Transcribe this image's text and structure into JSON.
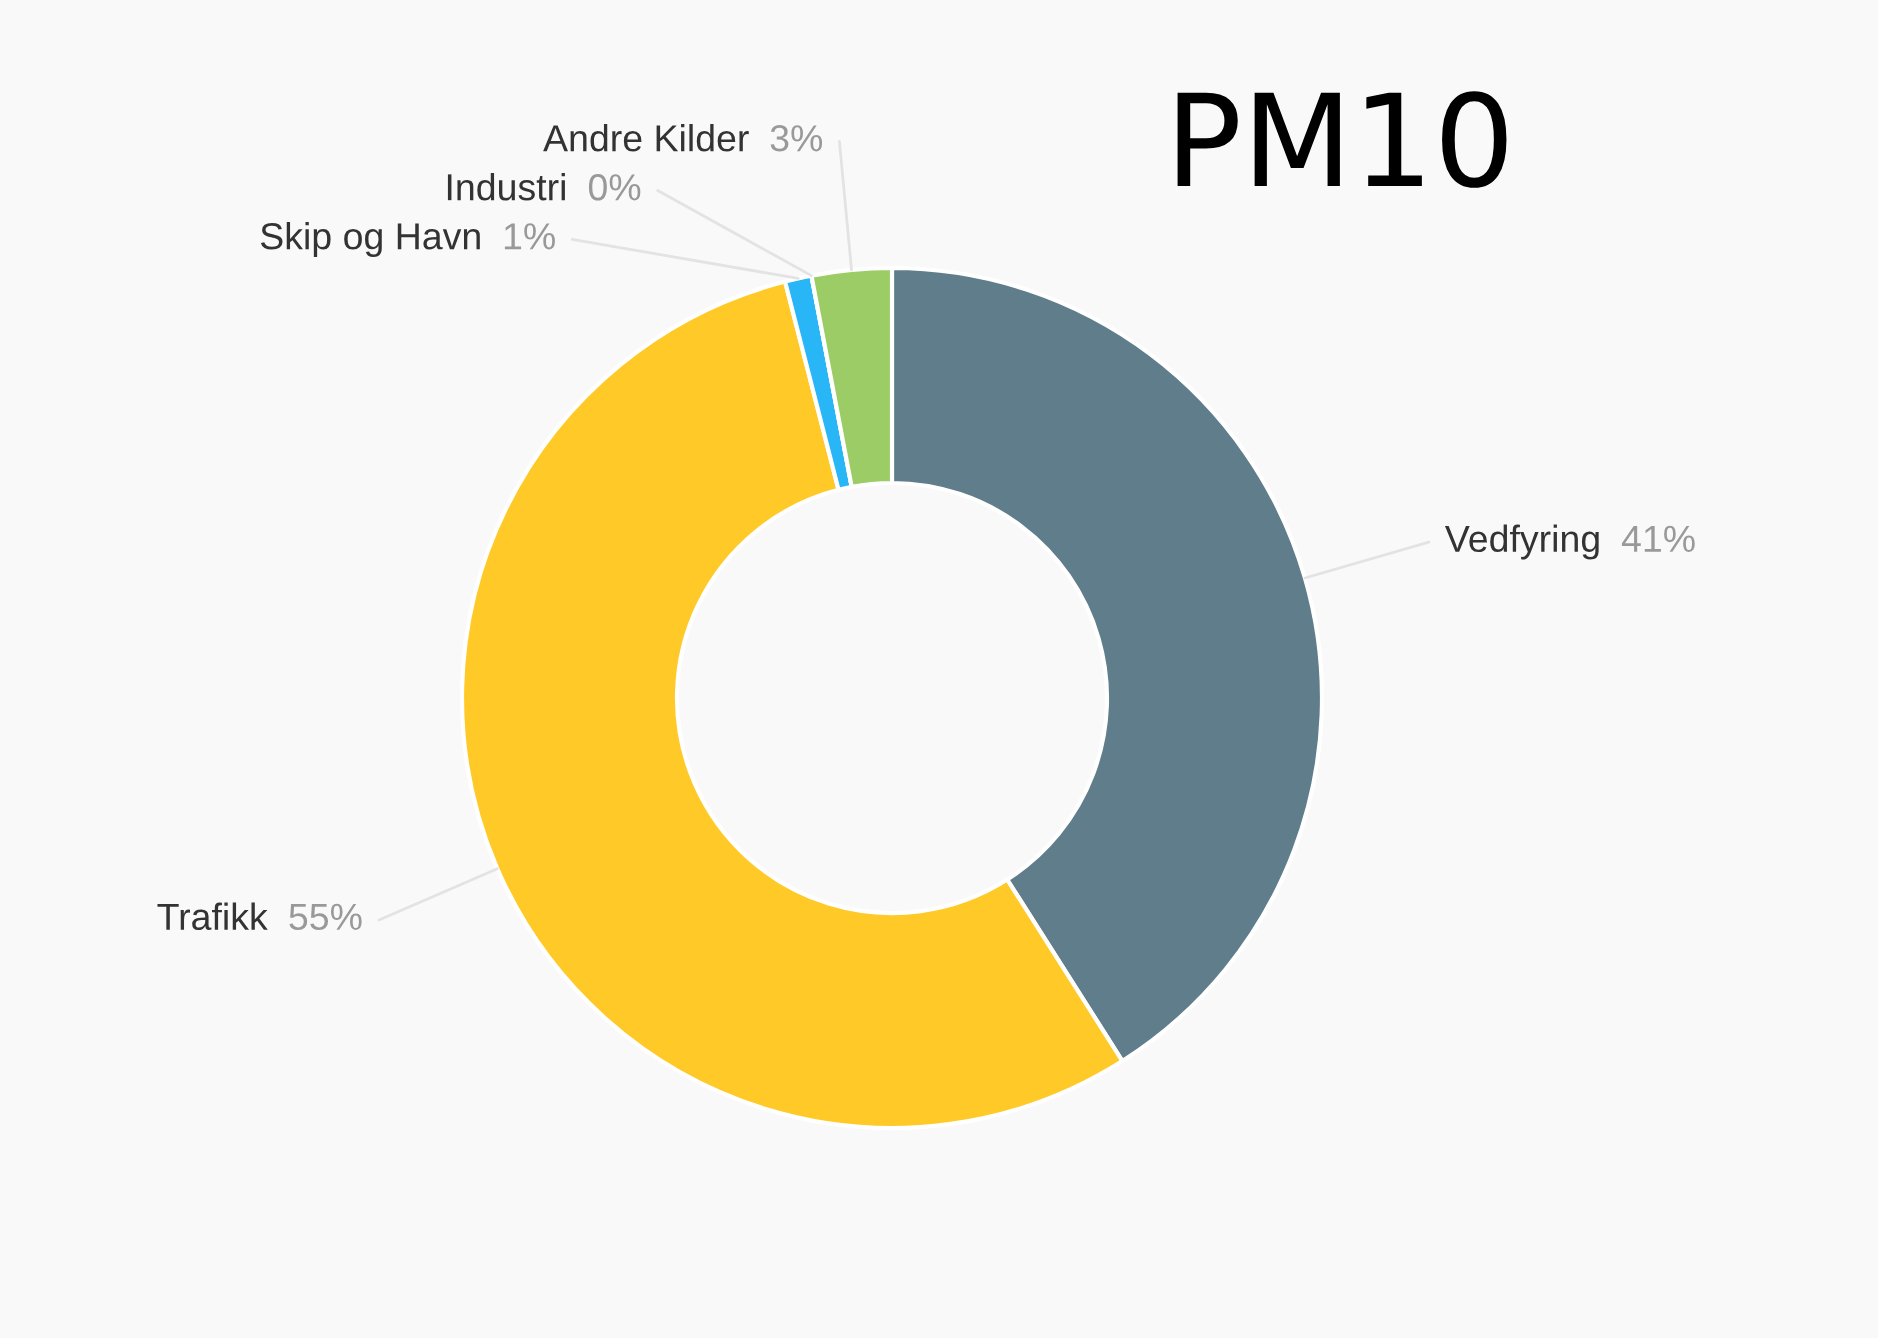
{
  "chart_data": {
    "type": "donut",
    "title": "PM10",
    "categories": [
      "Vedfyring",
      "Trafikk",
      "Skip og Havn",
      "Industri",
      "Andre Kilder"
    ],
    "values": [
      41,
      55,
      1,
      0,
      3
    ],
    "colors": [
      "#607d8b",
      "#ffca28",
      "#29b6f6",
      "#ffffff",
      "#9ccc65"
    ],
    "value_labels": [
      "41%",
      "55%",
      "1%",
      "0%",
      "3%"
    ]
  }
}
